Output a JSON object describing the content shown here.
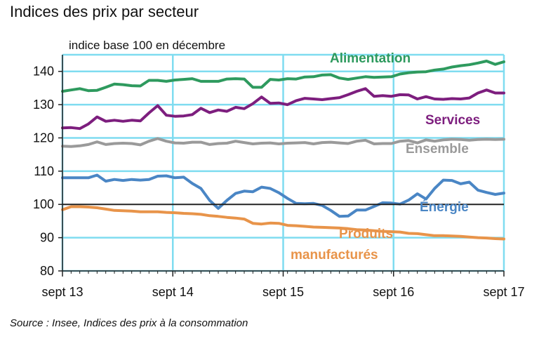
{
  "title": "Indices des prix par secteur",
  "source": "Source : Insee, Indices des prix à la consommation",
  "chart_data": {
    "type": "line",
    "title": "Indices des prix par secteur",
    "ylabel": "indice base 100 en décembre",
    "xlabel": "",
    "ylim": [
      80,
      145
    ],
    "y_ticks": [
      80,
      90,
      100,
      110,
      120,
      130,
      140
    ],
    "x_tick_labels": [
      "sept 13",
      "sept 14",
      "sept 15",
      "sept 16",
      "sept 17"
    ],
    "grid": true,
    "x_start_label": "sept 13",
    "series": [
      {
        "name": "Alimentation",
        "color": "#2e9a5e",
        "values": [
          134.0,
          134.4,
          134.8,
          134.2,
          134.3,
          135.2,
          136.2,
          136.0,
          135.7,
          135.6,
          137.3,
          137.3,
          137.0,
          137.4,
          137.6,
          137.8,
          137.0,
          137.0,
          137.0,
          137.7,
          137.8,
          137.7,
          135.2,
          135.2,
          137.6,
          137.4,
          137.8,
          137.7,
          138.3,
          138.4,
          138.9,
          139.0,
          138.0,
          137.6,
          138.0,
          138.4,
          138.2,
          138.3,
          138.4,
          139.2,
          139.6,
          139.8,
          139.9,
          140.4,
          140.7,
          141.3,
          141.7,
          142.0,
          142.5,
          143.1,
          142.1,
          142.9
        ]
      },
      {
        "name": "Services",
        "color": "#7d1e7e",
        "values": [
          123.0,
          123.1,
          122.8,
          124.2,
          126.3,
          125.0,
          125.3,
          125.0,
          125.3,
          125.1,
          127.5,
          129.7,
          126.8,
          126.5,
          126.6,
          127.0,
          128.9,
          127.6,
          128.4,
          128.0,
          129.2,
          128.8,
          130.3,
          132.3,
          130.4,
          130.5,
          130.0,
          131.2,
          131.9,
          131.7,
          131.5,
          131.8,
          132.1,
          133.0,
          134.0,
          134.8,
          132.5,
          132.7,
          132.5,
          133.0,
          132.9,
          131.7,
          132.4,
          131.7,
          131.6,
          131.8,
          131.7,
          132.0,
          133.5,
          134.4,
          133.5,
          133.5
        ]
      },
      {
        "name": "Ensemble",
        "color": "#9a9a9a",
        "values": [
          117.5,
          117.4,
          117.6,
          118.0,
          118.8,
          118.0,
          118.3,
          118.4,
          118.3,
          117.9,
          119.0,
          119.8,
          119.0,
          118.5,
          118.4,
          118.7,
          118.7,
          118.0,
          118.3,
          118.4,
          119.0,
          118.6,
          118.2,
          118.4,
          118.5,
          118.2,
          118.4,
          118.5,
          118.6,
          118.2,
          118.6,
          118.7,
          118.5,
          118.3,
          119.0,
          119.3,
          118.2,
          118.3,
          118.3,
          119.0,
          119.2,
          118.5,
          119.4,
          119.0,
          119.4,
          119.6,
          119.5,
          119.3,
          119.5,
          119.6,
          119.5,
          119.6
        ]
      },
      {
        "name": "Énergie",
        "color": "#4a86c5",
        "values": [
          108.0,
          108.0,
          108.0,
          108.0,
          108.8,
          107.0,
          107.5,
          107.2,
          107.5,
          107.3,
          107.5,
          108.5,
          108.6,
          108.0,
          108.2,
          106.3,
          104.8,
          101.2,
          98.8,
          101.2,
          103.3,
          104.0,
          103.8,
          105.2,
          104.8,
          103.5,
          101.8,
          100.3,
          100.2,
          100.3,
          99.7,
          98.2,
          96.4,
          96.5,
          98.3,
          98.3,
          99.4,
          100.5,
          100.4,
          100.1,
          101.3,
          103.2,
          101.6,
          104.8,
          107.3,
          107.2,
          106.2,
          106.7,
          104.3,
          103.6,
          103.0,
          103.4
        ]
      },
      {
        "name": "Produits manufacturés",
        "color": "#e8944a",
        "values": [
          98.4,
          99.3,
          99.3,
          99.2,
          99.0,
          98.6,
          98.2,
          98.1,
          98.0,
          97.8,
          97.8,
          97.8,
          97.6,
          97.5,
          97.3,
          97.2,
          97.0,
          96.6,
          96.4,
          96.1,
          95.9,
          95.6,
          94.3,
          94.1,
          94.4,
          94.3,
          93.7,
          93.6,
          93.4,
          93.2,
          93.1,
          93.0,
          92.9,
          92.7,
          92.4,
          92.3,
          92.1,
          91.9,
          91.8,
          91.7,
          91.3,
          91.2,
          90.9,
          90.6,
          90.6,
          90.5,
          90.4,
          90.2,
          90.0,
          89.9,
          89.7,
          89.6
        ]
      }
    ],
    "series_labels": {
      "alimentation": "Alimentation",
      "services": "Services",
      "ensemble": "Ensemble",
      "energie": "Énergie",
      "manuf_line1": "Produits",
      "manuf_line2": "manufacturés"
    }
  }
}
